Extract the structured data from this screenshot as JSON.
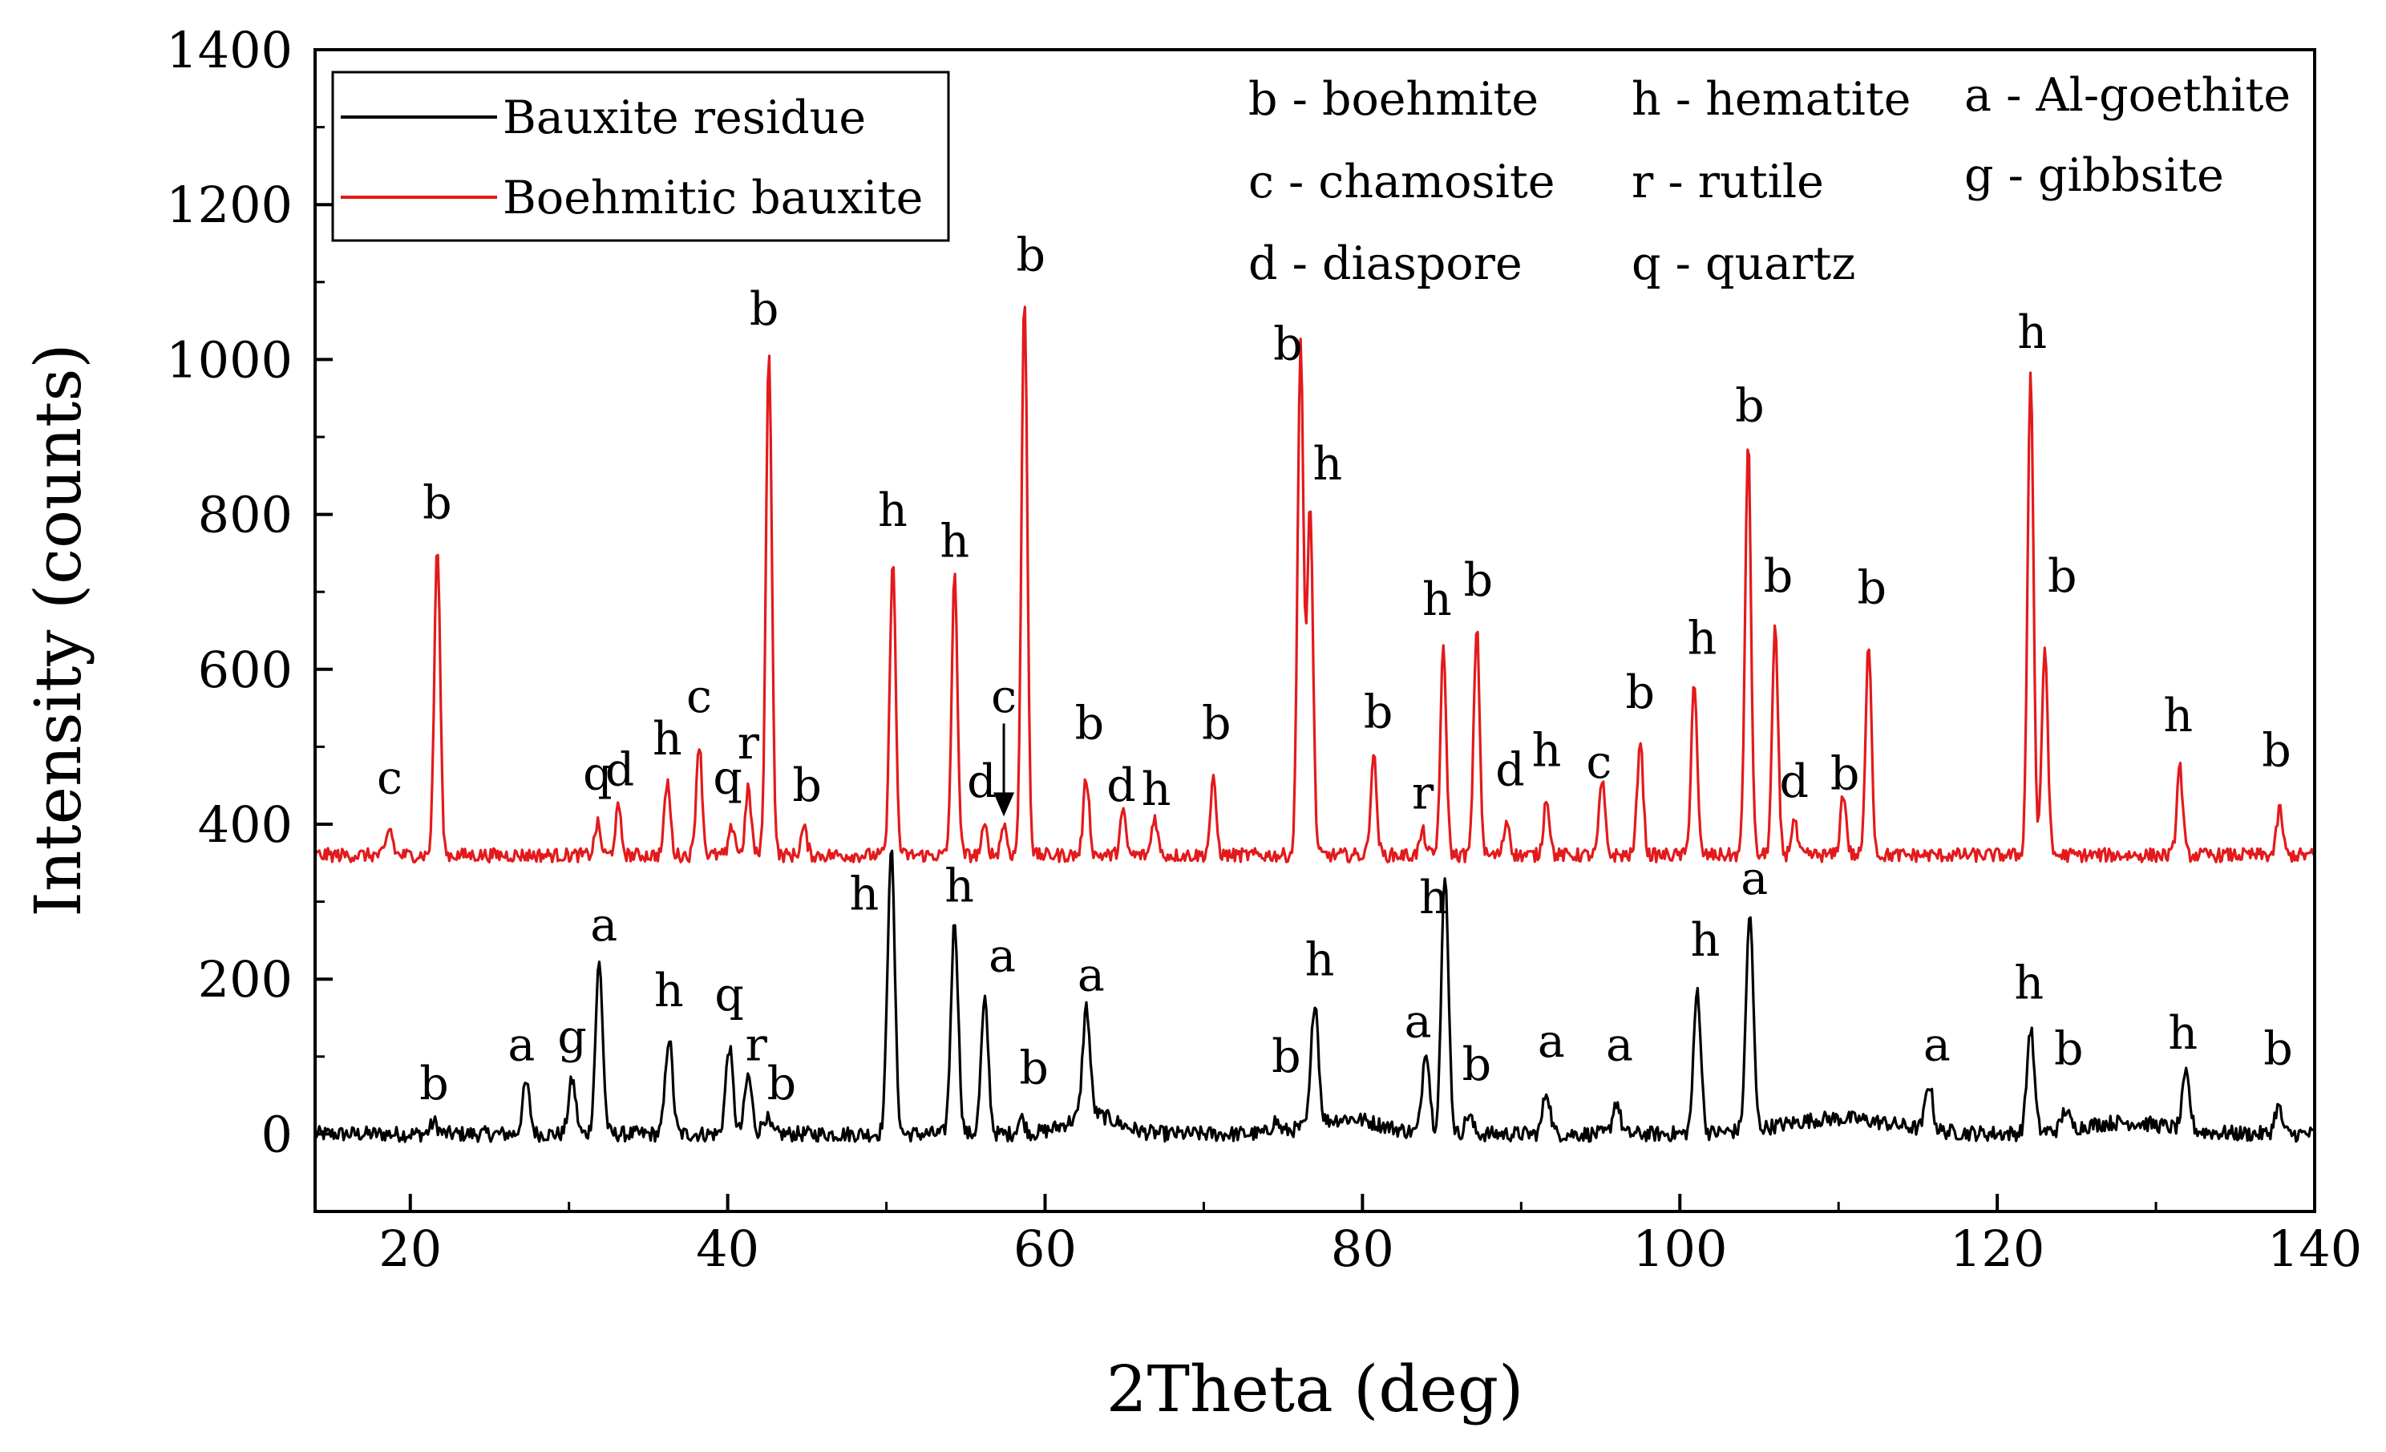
{
  "chart_data": {
    "type": "line",
    "title": "",
    "xlabel": "2Theta (deg)",
    "ylabel": "Intensity (counts)",
    "xlim": [
      14,
      140
    ],
    "ylim": [
      -100,
      1400
    ],
    "xticks": [
      20,
      40,
      60,
      80,
      100,
      120,
      140
    ],
    "yticks": [
      0,
      200,
      400,
      600,
      800,
      1000,
      1200,
      1400
    ],
    "legend_position": "top-left",
    "series": [
      {
        "name": "Bauxite residue",
        "color": "#000000",
        "baseline": 0,
        "peaks": [
          [
            21.5,
            15
          ],
          [
            27.3,
            65
          ],
          [
            30.2,
            70
          ],
          [
            31.9,
            220
          ],
          [
            36.3,
            125
          ],
          [
            40.1,
            112
          ],
          [
            41.3,
            75
          ],
          [
            42.4,
            22
          ],
          [
            50.3,
            370
          ],
          [
            54.3,
            275
          ],
          [
            56.2,
            170
          ],
          [
            58.5,
            20
          ],
          [
            62.6,
            140
          ],
          [
            74.5,
            15
          ],
          [
            77.0,
            160
          ],
          [
            84.0,
            110
          ],
          [
            85.2,
            330
          ],
          [
            86.7,
            25
          ],
          [
            91.6,
            55
          ],
          [
            96.0,
            42
          ],
          [
            101.1,
            185
          ],
          [
            104.4,
            280
          ],
          [
            115.7,
            60
          ],
          [
            122.1,
            135
          ],
          [
            124.3,
            25
          ],
          [
            131.9,
            70
          ],
          [
            137.7,
            35
          ]
        ]
      },
      {
        "name": "Boehmitic bauxite",
        "color": "#e31a1c",
        "baseline": 360,
        "peaks": [
          [
            18.7,
            35
          ],
          [
            21.7,
            400
          ],
          [
            31.8,
            40
          ],
          [
            33.1,
            60
          ],
          [
            36.2,
            95
          ],
          [
            38.2,
            145
          ],
          [
            40.3,
            38
          ],
          [
            41.3,
            85
          ],
          [
            42.6,
            655
          ],
          [
            44.8,
            35
          ],
          [
            50.4,
            385
          ],
          [
            54.3,
            360
          ],
          [
            56.2,
            35
          ],
          [
            57.4,
            40
          ],
          [
            58.7,
            725
          ],
          [
            62.6,
            100
          ],
          [
            64.9,
            55
          ],
          [
            66.9,
            50
          ],
          [
            70.6,
            95
          ],
          [
            76.1,
            665
          ],
          [
            76.7,
            455
          ],
          [
            80.7,
            130
          ],
          [
            83.8,
            30
          ],
          [
            85.1,
            265
          ],
          [
            87.2,
            295
          ],
          [
            89.1,
            45
          ],
          [
            91.6,
            75
          ],
          [
            95.1,
            95
          ],
          [
            97.5,
            150
          ],
          [
            100.9,
            225
          ],
          [
            104.3,
            535
          ],
          [
            106.0,
            290
          ],
          [
            107.2,
            45
          ],
          [
            110.3,
            80
          ],
          [
            111.9,
            275
          ],
          [
            122.1,
            625
          ],
          [
            123.0,
            270
          ],
          [
            131.5,
            115
          ],
          [
            137.8,
            60
          ]
        ]
      }
    ],
    "phase_key": [
      "b - boehmite",
      "c - chamosite",
      "d - diaspore",
      "h - hematite",
      "r - rutile",
      "q - quartz",
      "a - Al-goethite",
      "g - gibbsite"
    ],
    "peak_labels": {
      "red": [
        {
          "text": "c",
          "x": 18.7,
          "y": 440
        },
        {
          "text": "b",
          "x": 21.7,
          "y": 795
        },
        {
          "text": "q",
          "x": 31.8,
          "y": 445
        },
        {
          "text": "d",
          "x": 33.2,
          "y": 450
        },
        {
          "text": "h",
          "x": 36.2,
          "y": 490
        },
        {
          "text": "c",
          "x": 38.2,
          "y": 545
        },
        {
          "text": "q",
          "x": 40.0,
          "y": 440
        },
        {
          "text": "r",
          "x": 41.3,
          "y": 485
        },
        {
          "text": "b",
          "x": 42.3,
          "y": 1045
        },
        {
          "text": "b",
          "x": 45.0,
          "y": 430
        },
        {
          "text": "h",
          "x": 50.4,
          "y": 785
        },
        {
          "text": "h",
          "x": 54.3,
          "y": 745
        },
        {
          "text": "c",
          "x": 57.4,
          "y": 545
        },
        {
          "text": "d",
          "x": 56.0,
          "y": 435
        },
        {
          "text": "b",
          "x": 59.1,
          "y": 1115
        },
        {
          "text": "b",
          "x": 62.8,
          "y": 510
        },
        {
          "text": "d",
          "x": 64.8,
          "y": 430
        },
        {
          "text": "h",
          "x": 67.0,
          "y": 425
        },
        {
          "text": "b",
          "x": 70.8,
          "y": 510
        },
        {
          "text": "b",
          "x": 75.3,
          "y": 1000
        },
        {
          "text": "h",
          "x": 77.8,
          "y": 845
        },
        {
          "text": "b",
          "x": 81.0,
          "y": 525
        },
        {
          "text": "r",
          "x": 83.8,
          "y": 420
        },
        {
          "text": "h",
          "x": 84.7,
          "y": 670
        },
        {
          "text": "b",
          "x": 87.3,
          "y": 695
        },
        {
          "text": "d",
          "x": 89.3,
          "y": 450
        },
        {
          "text": "h",
          "x": 91.6,
          "y": 475
        },
        {
          "text": "c",
          "x": 94.9,
          "y": 460
        },
        {
          "text": "b",
          "x": 97.5,
          "y": 550
        },
        {
          "text": "h",
          "x": 101.4,
          "y": 620
        },
        {
          "text": "b",
          "x": 104.4,
          "y": 920
        },
        {
          "text": "b",
          "x": 106.2,
          "y": 700
        },
        {
          "text": "d",
          "x": 107.2,
          "y": 435
        },
        {
          "text": "b",
          "x": 110.4,
          "y": 445
        },
        {
          "text": "b",
          "x": 112.1,
          "y": 685
        },
        {
          "text": "h",
          "x": 122.2,
          "y": 1015
        },
        {
          "text": "b",
          "x": 124.1,
          "y": 700
        },
        {
          "text": "h",
          "x": 131.4,
          "y": 520
        },
        {
          "text": "b",
          "x": 137.6,
          "y": 475
        }
      ],
      "black": [
        {
          "text": "b",
          "x": 21.5,
          "y": 45
        },
        {
          "text": "a",
          "x": 27.0,
          "y": 95
        },
        {
          "text": "g",
          "x": 30.2,
          "y": 105
        },
        {
          "text": "a",
          "x": 32.2,
          "y": 250
        },
        {
          "text": "h",
          "x": 36.3,
          "y": 165
        },
        {
          "text": "q",
          "x": 40.1,
          "y": 160
        },
        {
          "text": "r",
          "x": 41.8,
          "y": 95
        },
        {
          "text": "b",
          "x": 43.4,
          "y": 45
        },
        {
          "text": "h",
          "x": 48.6,
          "y": 290
        },
        {
          "text": "h",
          "x": 54.6,
          "y": 300
        },
        {
          "text": "a",
          "x": 57.3,
          "y": 210
        },
        {
          "text": "b",
          "x": 59.3,
          "y": 65
        },
        {
          "text": "a",
          "x": 62.9,
          "y": 185
        },
        {
          "text": "b",
          "x": 75.2,
          "y": 80
        },
        {
          "text": "h",
          "x": 77.3,
          "y": 205
        },
        {
          "text": "a",
          "x": 83.5,
          "y": 125
        },
        {
          "text": "h",
          "x": 84.5,
          "y": 285
        },
        {
          "text": "b",
          "x": 87.2,
          "y": 70
        },
        {
          "text": "a",
          "x": 91.9,
          "y": 100
        },
        {
          "text": "a",
          "x": 96.2,
          "y": 95
        },
        {
          "text": "h",
          "x": 101.6,
          "y": 230
        },
        {
          "text": "a",
          "x": 104.7,
          "y": 310
        },
        {
          "text": "a",
          "x": 116.2,
          "y": 95
        },
        {
          "text": "h",
          "x": 122.0,
          "y": 175
        },
        {
          "text": "b",
          "x": 124.5,
          "y": 90
        },
        {
          "text": "h",
          "x": 131.7,
          "y": 110
        },
        {
          "text": "b",
          "x": 137.7,
          "y": 90
        }
      ]
    },
    "arrow_annotation": {
      "x": 57.4,
      "y_from": 530,
      "y_to": 410
    }
  }
}
